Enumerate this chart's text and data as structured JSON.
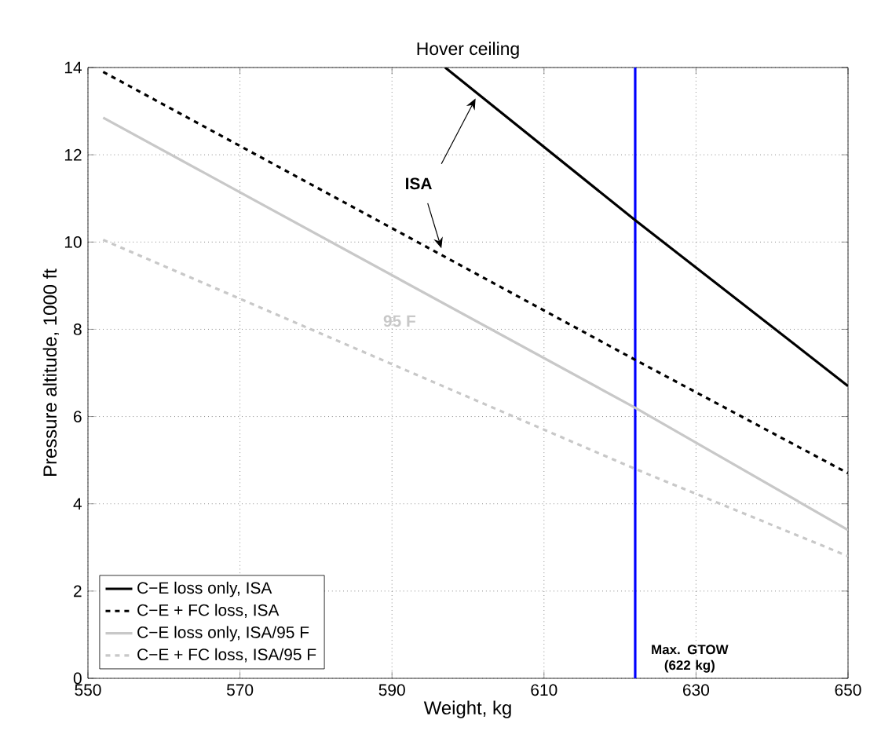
{
  "chart_data": {
    "type": "line",
    "title": "Hover ceiling",
    "xlabel": "Weight, kg",
    "ylabel": "Pressure altitude, 1000 ft",
    "series": [
      {
        "name": "C−E loss only, ISA",
        "color": "#000000",
        "line_style": "solid",
        "x": [
          597,
          622,
          650
        ],
        "values": [
          14,
          10.5,
          6.7
        ]
      },
      {
        "name": "C−E + FC loss, ISA",
        "color": "#000000",
        "line_style": "dashed",
        "x": [
          552,
          622,
          650
        ],
        "values": [
          13.9,
          7.3,
          4.7
        ]
      },
      {
        "name": "C−E loss only, ISA/95 F",
        "color": "#c8c8c8",
        "line_style": "solid",
        "x": [
          552,
          622,
          650
        ],
        "values": [
          12.85,
          6.2,
          3.4
        ]
      },
      {
        "name": "C−E + FC loss, ISA/95 F",
        "color": "#c8c8c8",
        "line_style": "dashed",
        "x": [
          552,
          622,
          650
        ],
        "values": [
          10.05,
          4.8,
          2.8
        ]
      }
    ],
    "xlim": [
      550,
      650
    ],
    "ylim": [
      0,
      14
    ],
    "xticks": [
      550,
      570,
      590,
      610,
      630,
      650
    ],
    "yticks": [
      0,
      2,
      4,
      6,
      8,
      10,
      12,
      14
    ],
    "ref_lines": [
      {
        "axis": "x",
        "value": 622,
        "label": "Max. GTOW (622 kg)",
        "color": "#0000ff"
      }
    ],
    "annotations": [
      "ISA",
      "95 F"
    ],
    "grid": true,
    "legend": "bottom left",
    "marker": "none"
  }
}
